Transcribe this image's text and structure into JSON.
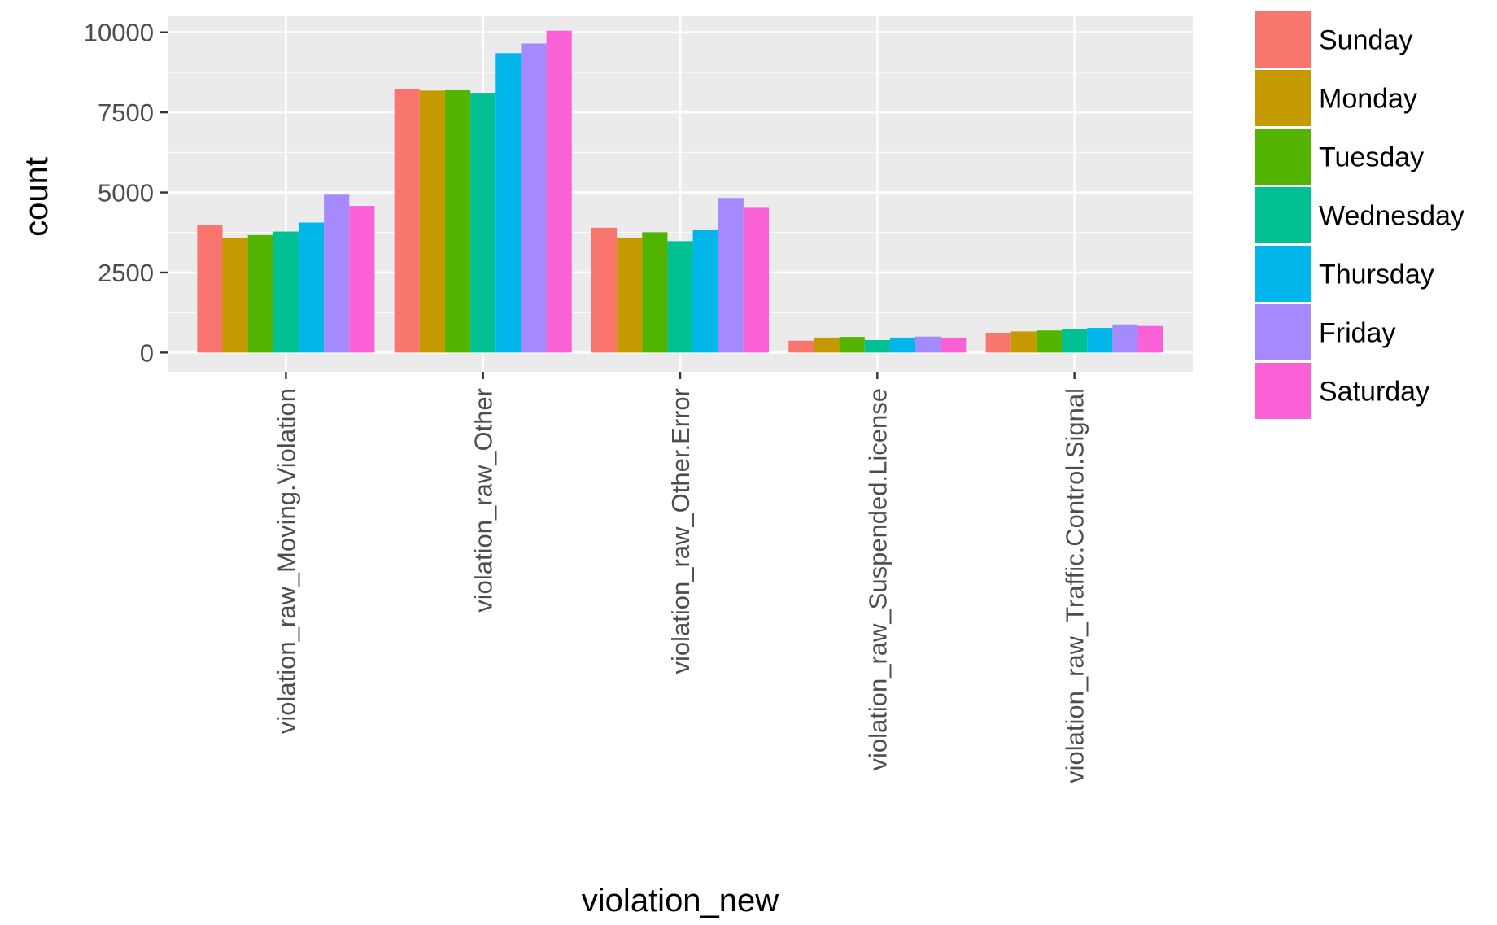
{
  "chart_data": {
    "type": "bar",
    "xlabel": "violation_new",
    "ylabel": "count",
    "ylim": [
      -600,
      10500
    ],
    "yticks": [
      0,
      2500,
      5000,
      7500,
      10000
    ],
    "grid": true,
    "legend_position": "right",
    "categories": [
      "violation_raw_Moving.Violation",
      "violation_raw_Other",
      "violation_raw_Other.Error",
      "violation_raw_Suspended.License",
      "violation_raw_Traffic.Control.Signal"
    ],
    "series": [
      {
        "name": "Sunday",
        "color": "#F8766D",
        "values": [
          3980,
          8220,
          3900,
          370,
          620
        ]
      },
      {
        "name": "Monday",
        "color": "#C49A00",
        "values": [
          3580,
          8180,
          3580,
          470,
          660
        ]
      },
      {
        "name": "Tuesday",
        "color": "#53B400",
        "values": [
          3670,
          8190,
          3760,
          490,
          690
        ]
      },
      {
        "name": "Wednesday",
        "color": "#00C094",
        "values": [
          3780,
          8110,
          3480,
          390,
          730
        ]
      },
      {
        "name": "Thursday",
        "color": "#00B6EB",
        "values": [
          4060,
          9350,
          3820,
          470,
          770
        ]
      },
      {
        "name": "Friday",
        "color": "#A58AFF",
        "values": [
          4930,
          9650,
          4830,
          500,
          880
        ]
      },
      {
        "name": "Saturday",
        "color": "#FB61D7",
        "values": [
          4580,
          10050,
          4520,
          470,
          830
        ]
      }
    ]
  }
}
